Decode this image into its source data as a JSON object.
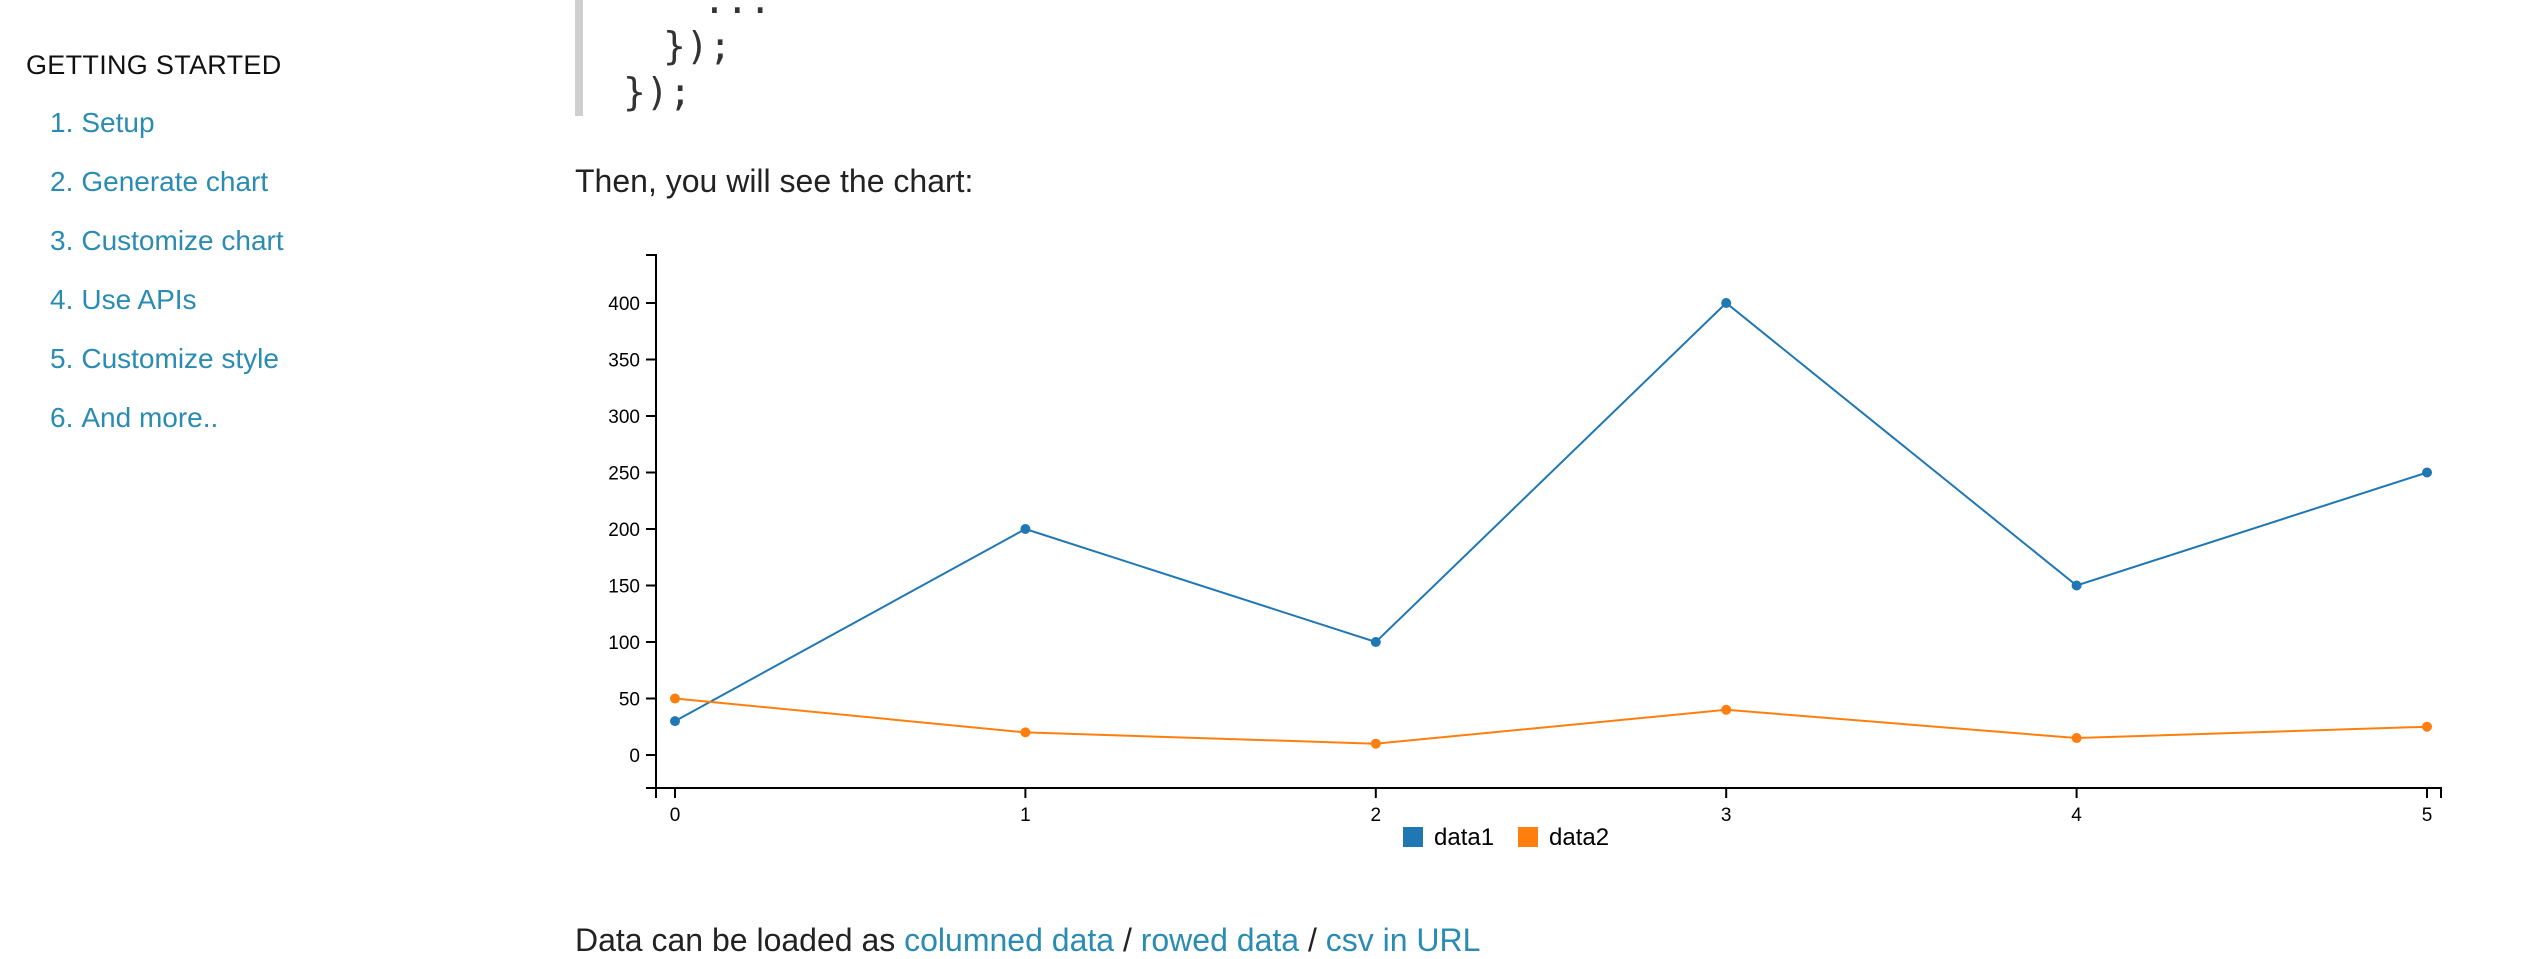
{
  "sidebar": {
    "heading": "GETTING STARTED",
    "items": [
      {
        "num": "1.",
        "label": "Setup"
      },
      {
        "num": "2.",
        "label": "Generate chart"
      },
      {
        "num": "3.",
        "label": "Customize chart"
      },
      {
        "num": "4.",
        "label": "Use APIs"
      },
      {
        "num": "5.",
        "label": "Customize style"
      },
      {
        "num": "6.",
        "label": "And more.."
      }
    ],
    "link_color": "#2a8bb3"
  },
  "code": {
    "lines": [
      "...",
      "});",
      "});"
    ]
  },
  "main": {
    "intro_text": "Then, you will see the chart:",
    "bottom_text_prefix": "Data can be loaded as",
    "bottom_links": [
      "columned data",
      "rowed data",
      "csv in URL"
    ]
  },
  "chart_data": {
    "type": "line",
    "x": [
      0,
      1,
      2,
      3,
      4,
      5
    ],
    "series": [
      {
        "name": "data1",
        "values": [
          30,
          200,
          100,
          400,
          150,
          250
        ],
        "color": "#1f77b4"
      },
      {
        "name": "data2",
        "values": [
          50,
          20,
          10,
          40,
          15,
          25
        ],
        "color": "#ff7f0e"
      }
    ],
    "xticks": [
      0,
      1,
      2,
      3,
      4,
      5
    ],
    "yticks": [
      0,
      50,
      100,
      150,
      200,
      250,
      300,
      350,
      400
    ],
    "ylim": [
      -29,
      442
    ],
    "xlim": [
      -0.05,
      5.05
    ],
    "title": "",
    "xlabel": "",
    "ylabel": "",
    "legend_position": "bottom-center",
    "grid": false
  }
}
